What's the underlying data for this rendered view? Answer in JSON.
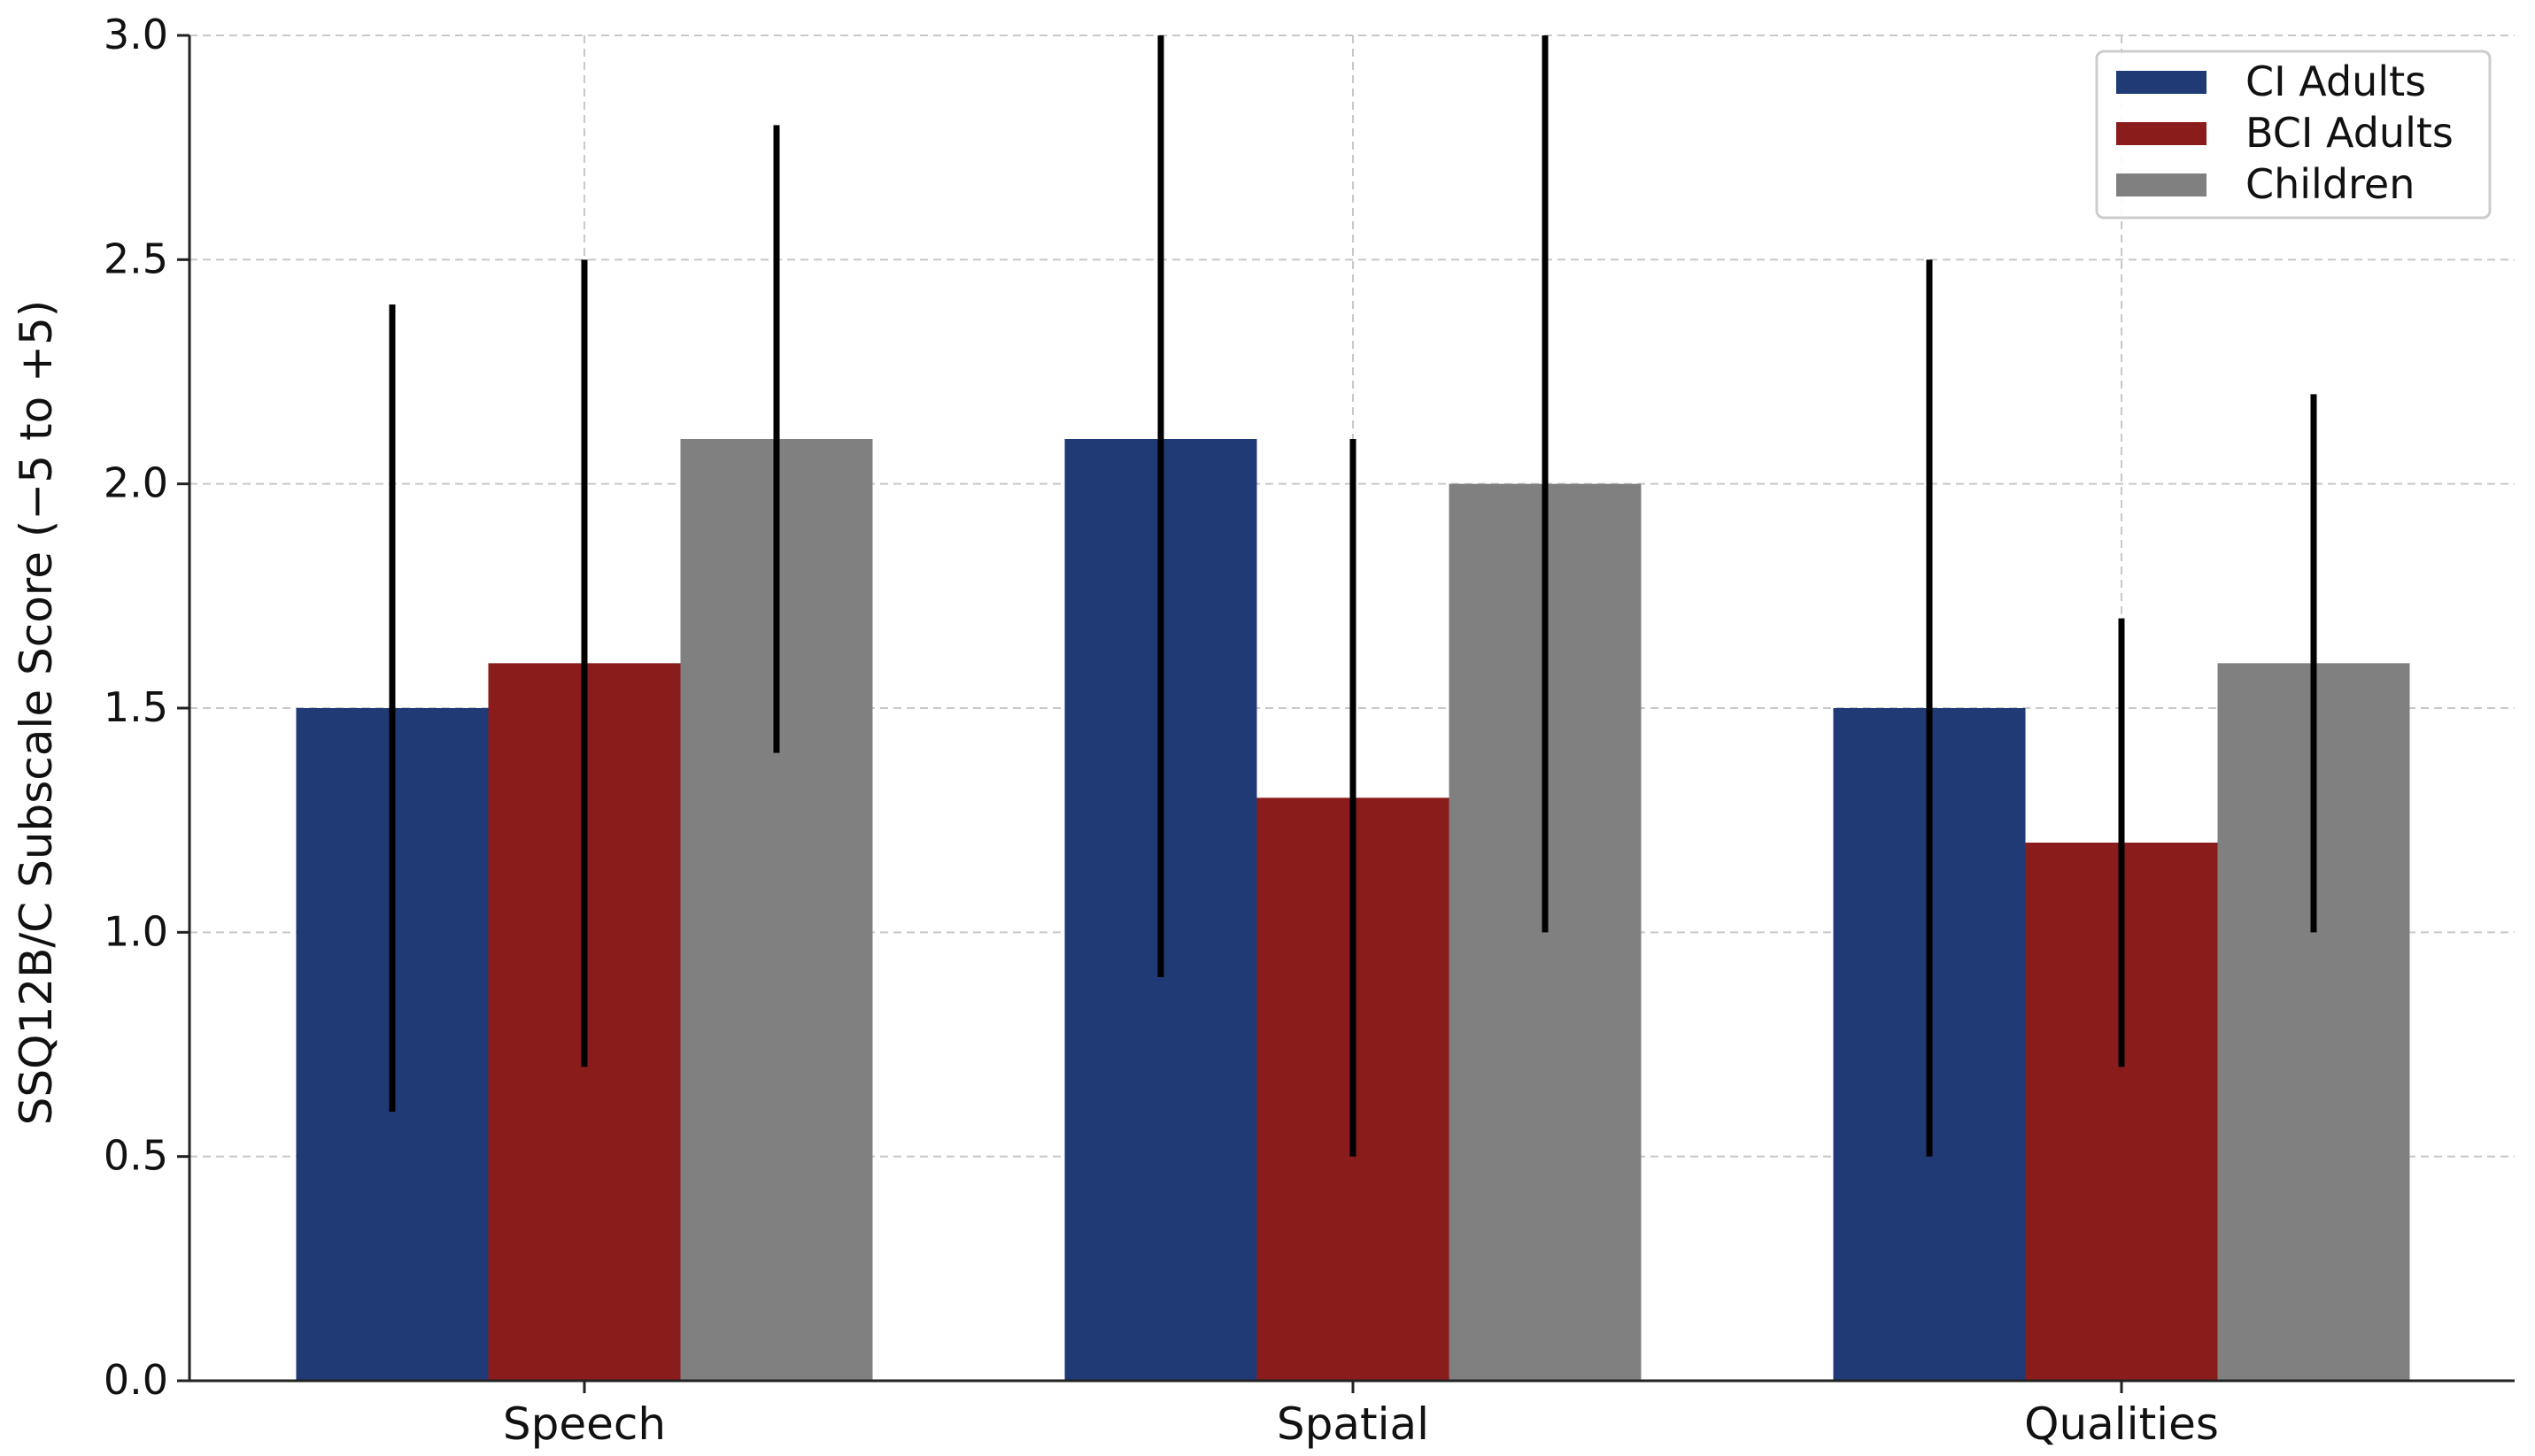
{
  "chart_data": {
    "type": "bar",
    "title": "",
    "xlabel": "",
    "ylabel": "SSQ12B/C Subscale Score (−5 to +5)",
    "categories": [
      "Speech",
      "Spatial",
      "Qualities"
    ],
    "series": [
      {
        "name": "CI Adults",
        "color": "#1f3a74",
        "values": [
          1.5,
          2.1,
          1.5
        ],
        "error": [
          0.9,
          1.2,
          1.0
        ]
      },
      {
        "name": "BCI Adults",
        "color": "#8b1c1c",
        "values": [
          1.6,
          1.3,
          1.2
        ],
        "error": [
          0.9,
          0.8,
          0.5
        ]
      },
      {
        "name": "Children",
        "color": "#808080",
        "values": [
          2.1,
          2.0,
          1.6
        ],
        "error": [
          0.7,
          1.0,
          0.6
        ]
      }
    ],
    "ylim": [
      0,
      3.0
    ],
    "yticks": [
      "0.0",
      "0.5",
      "1.0",
      "1.5",
      "2.0",
      "2.5",
      "3.0"
    ],
    "grid": true,
    "legend_position": "top-right"
  }
}
